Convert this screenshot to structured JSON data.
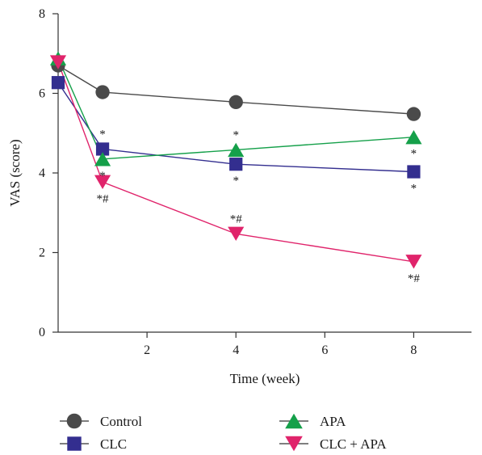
{
  "chart_data": {
    "type": "line",
    "title": "",
    "xlabel": "Time (week)",
    "ylabel": "VAS (score)",
    "xlim": [
      0,
      9.3
    ],
    "ylim": [
      0,
      8
    ],
    "x_ticks": [
      2,
      4,
      6,
      8
    ],
    "y_ticks": [
      0,
      2,
      4,
      6,
      8
    ],
    "x_tick_labels": [
      "2",
      "4",
      "6",
      "8"
    ],
    "y_tick_labels": [
      "0",
      "2",
      "4",
      "6",
      "8"
    ],
    "grid": false,
    "legend_position": "bottom",
    "series": [
      {
        "name": "Control",
        "color": "#4a4a4a",
        "marker": "circle",
        "points": [
          {
            "x": 0,
            "y": 6.7
          },
          {
            "x": 1,
            "y": 6.03
          },
          {
            "x": 4,
            "y": 5.78
          },
          {
            "x": 8,
            "y": 5.48
          }
        ]
      },
      {
        "name": "CLC",
        "color": "#332e8f",
        "marker": "square",
        "points": [
          {
            "x": 0,
            "y": 6.27
          },
          {
            "x": 1,
            "y": 4.6
          },
          {
            "x": 4,
            "y": 4.22
          },
          {
            "x": 8,
            "y": 4.03
          }
        ]
      },
      {
        "name": "APA",
        "color": "#15a04a",
        "marker": "triangle-up",
        "points": [
          {
            "x": 0,
            "y": 6.88
          },
          {
            "x": 1,
            "y": 4.35
          },
          {
            "x": 4,
            "y": 4.58
          },
          {
            "x": 8,
            "y": 4.9
          }
        ]
      },
      {
        "name": "CLC + APA",
        "color": "#e0246b",
        "marker": "triangle-down",
        "points": [
          {
            "x": 0,
            "y": 6.78
          },
          {
            "x": 1,
            "y": 3.77
          },
          {
            "x": 4,
            "y": 2.47
          },
          {
            "x": 8,
            "y": 1.77
          }
        ]
      }
    ],
    "annotations": [
      {
        "text": "*",
        "x": 1,
        "y": 4.6,
        "place": "above"
      },
      {
        "text": "*",
        "x": 1,
        "y": 4.35,
        "place": "below"
      },
      {
        "text": "*#",
        "x": 1,
        "y": 3.77,
        "place": "below"
      },
      {
        "text": "*",
        "x": 4,
        "y": 4.58,
        "place": "above"
      },
      {
        "text": "*",
        "x": 4,
        "y": 4.22,
        "place": "below"
      },
      {
        "text": "*#",
        "x": 4,
        "y": 2.47,
        "place": "above"
      },
      {
        "text": "*",
        "x": 8,
        "y": 4.9,
        "place": "below"
      },
      {
        "text": "*",
        "x": 8,
        "y": 4.03,
        "place": "below"
      },
      {
        "text": "*#",
        "x": 8,
        "y": 1.77,
        "place": "below"
      }
    ]
  }
}
